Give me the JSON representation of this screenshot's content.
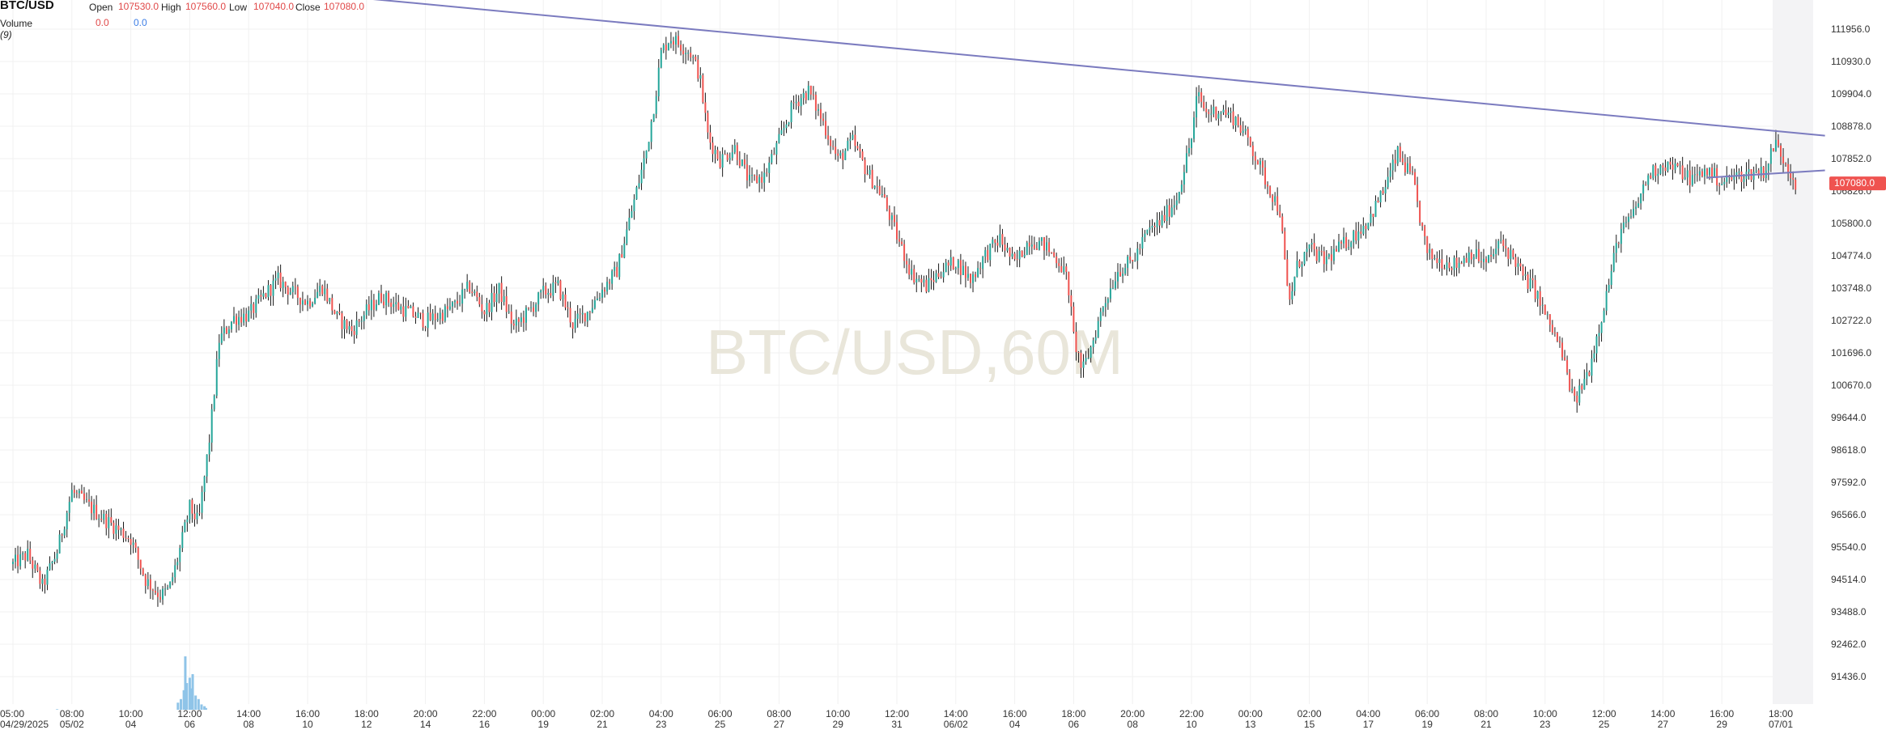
{
  "header": {
    "symbol": "BTC/USD",
    "open_label": "Open",
    "open_value": "107530.0",
    "high_label": "High",
    "high_value": "107560.0",
    "low_label": "Low",
    "low_value": "107040.0",
    "close_label": "Close",
    "close_value": "107080.0",
    "volume_label": "Volume",
    "volume_param": "(9)",
    "volume_value_1": "0.0",
    "volume_value_2": "0.0"
  },
  "chart_data": {
    "type": "candlestick",
    "title": "BTC/USD",
    "watermark": "BTC/USD,60M",
    "current_price": 107080.0,
    "current_price_label": "107080.0",
    "ylim": [
      90400,
      113000
    ],
    "y_ticks": [
      "111956.0",
      "110930.0",
      "109904.0",
      "108878.0",
      "107852.0",
      "106826.0",
      "105800.0",
      "104774.0",
      "103748.0",
      "102722.0",
      "101696.0",
      "100670.0",
      "99644.0",
      "98618.0",
      "97592.0",
      "96566.0",
      "95540.0",
      "94514.0",
      "93488.0",
      "92462.0",
      "91436.0"
    ],
    "x_ticks": [
      {
        "time": "05:00",
        "date": "04/29/2025"
      },
      {
        "time": "08:00",
        "date": "05/02"
      },
      {
        "time": "10:00",
        "date": "04"
      },
      {
        "time": "12:00",
        "date": "06"
      },
      {
        "time": "14:00",
        "date": "08"
      },
      {
        "time": "16:00",
        "date": "10"
      },
      {
        "time": "18:00",
        "date": "12"
      },
      {
        "time": "20:00",
        "date": "14"
      },
      {
        "time": "22:00",
        "date": "16"
      },
      {
        "time": "00:00",
        "date": "19"
      },
      {
        "time": "02:00",
        "date": "21"
      },
      {
        "time": "04:00",
        "date": "23"
      },
      {
        "time": "06:00",
        "date": "25"
      },
      {
        "time": "08:00",
        "date": "27"
      },
      {
        "time": "10:00",
        "date": "29"
      },
      {
        "time": "12:00",
        "date": "31"
      },
      {
        "time": "14:00",
        "date": "06/02"
      },
      {
        "time": "16:00",
        "date": "04"
      },
      {
        "time": "18:00",
        "date": "06"
      },
      {
        "time": "20:00",
        "date": "08"
      },
      {
        "time": "22:00",
        "date": "10"
      },
      {
        "time": "00:00",
        "date": "13"
      },
      {
        "time": "02:00",
        "date": "15"
      },
      {
        "time": "04:00",
        "date": "17"
      },
      {
        "time": "06:00",
        "date": "19"
      },
      {
        "time": "08:00",
        "date": "21"
      },
      {
        "time": "10:00",
        "date": "23"
      },
      {
        "time": "12:00",
        "date": "25"
      },
      {
        "time": "14:00",
        "date": "27"
      },
      {
        "time": "16:00",
        "date": "29"
      },
      {
        "time": "18:00",
        "date": "07/01"
      }
    ],
    "price_path": [
      [
        0,
        95000
      ],
      [
        0.5,
        95300
      ],
      [
        1,
        94300
      ],
      [
        1.5,
        95400
      ],
      [
        2,
        97300
      ],
      [
        3,
        96500
      ],
      [
        4,
        95800
      ],
      [
        4.5,
        94500
      ],
      [
        5,
        94000
      ],
      [
        5.3,
        94200
      ],
      [
        5.6,
        95200
      ],
      [
        6,
        96800
      ],
      [
        6.3,
        96300
      ],
      [
        6.7,
        99200
      ],
      [
        7,
        102100
      ],
      [
        7.5,
        102800
      ],
      [
        8,
        102900
      ],
      [
        8.6,
        103600
      ],
      [
        9,
        104000
      ],
      [
        9.5,
        103600
      ],
      [
        10,
        103300
      ],
      [
        10.5,
        103800
      ],
      [
        11,
        102800
      ],
      [
        11.5,
        102400
      ],
      [
        12,
        103000
      ],
      [
        12.5,
        103500
      ],
      [
        13,
        103200
      ],
      [
        13.4,
        103000
      ],
      [
        14,
        102700
      ],
      [
        14.5,
        102900
      ],
      [
        15,
        103200
      ],
      [
        15.5,
        103800
      ],
      [
        16,
        103000
      ],
      [
        16.5,
        103700
      ],
      [
        17,
        102500
      ],
      [
        17.5,
        103000
      ],
      [
        18,
        103600
      ],
      [
        18.5,
        103800
      ],
      [
        19,
        102600
      ],
      [
        19.5,
        103000
      ],
      [
        20,
        103700
      ],
      [
        20.5,
        104300
      ],
      [
        21,
        106200
      ],
      [
        21.5,
        108100
      ],
      [
        21.8,
        109800
      ],
      [
        22,
        111200
      ],
      [
        22.3,
        111700
      ],
      [
        22.6,
        111500
      ],
      [
        23,
        111200
      ],
      [
        23.3,
        110500
      ],
      [
        23.6,
        108500
      ],
      [
        24,
        107800
      ],
      [
        24.5,
        108200
      ],
      [
        25,
        107100
      ],
      [
        25.5,
        107300
      ],
      [
        26,
        108400
      ],
      [
        26.5,
        109600
      ],
      [
        27,
        110000
      ],
      [
        27.5,
        109000
      ],
      [
        28,
        107800
      ],
      [
        28.5,
        108400
      ],
      [
        29,
        107400
      ],
      [
        29.5,
        106700
      ],
      [
        30,
        105400
      ],
      [
        30.5,
        104200
      ],
      [
        31,
        103800
      ],
      [
        31.5,
        104300
      ],
      [
        32,
        104600
      ],
      [
        32.5,
        104000
      ],
      [
        33,
        104800
      ],
      [
        33.5,
        105300
      ],
      [
        34,
        104500
      ],
      [
        34.5,
        105300
      ],
      [
        35,
        105100
      ],
      [
        35.5,
        104600
      ],
      [
        35.8,
        104000
      ],
      [
        36,
        102200
      ],
      [
        36.3,
        101100
      ],
      [
        36.6,
        101900
      ],
      [
        37,
        103200
      ],
      [
        37.5,
        104300
      ],
      [
        38,
        104600
      ],
      [
        38.5,
        105500
      ],
      [
        39,
        105900
      ],
      [
        39.5,
        106600
      ],
      [
        40,
        108500
      ],
      [
        40.2,
        109900
      ],
      [
        40.5,
        109300
      ],
      [
        41,
        109400
      ],
      [
        41.5,
        109100
      ],
      [
        42,
        108300
      ],
      [
        42.5,
        107200
      ],
      [
        43,
        106200
      ],
      [
        43.3,
        103200
      ],
      [
        43.6,
        104500
      ],
      [
        44,
        105000
      ],
      [
        44.5,
        104600
      ],
      [
        45,
        105000
      ],
      [
        45.5,
        105400
      ],
      [
        46,
        105900
      ],
      [
        46.5,
        106800
      ],
      [
        47,
        108000
      ],
      [
        47.5,
        107200
      ],
      [
        48,
        104800
      ],
      [
        48.5,
        104600
      ],
      [
        49,
        104500
      ],
      [
        49.5,
        104900
      ],
      [
        50,
        104500
      ],
      [
        50.5,
        105200
      ],
      [
        51,
        104600
      ],
      [
        51.3,
        104000
      ],
      [
        51.6,
        103800
      ],
      [
        52,
        102900
      ],
      [
        52.5,
        101900
      ],
      [
        53,
        100100
      ],
      [
        53.5,
        101200
      ],
      [
        54,
        103200
      ],
      [
        54.5,
        105400
      ],
      [
        55,
        106100
      ],
      [
        55.5,
        107300
      ],
      [
        56,
        107700
      ],
      [
        56.5,
        107500
      ],
      [
        57,
        107200
      ],
      [
        57.5,
        107500
      ],
      [
        58,
        107100
      ],
      [
        58.5,
        107300
      ],
      [
        59,
        107400
      ],
      [
        59.5,
        107500
      ],
      [
        59.8,
        108400
      ],
      [
        60,
        108000
      ],
      [
        60.2,
        107700
      ],
      [
        60.5,
        107080
      ]
    ],
    "volume_spikes": [
      [
        1.5,
        3
      ],
      [
        5.6,
        40
      ],
      [
        5.7,
        60
      ],
      [
        5.8,
        110
      ],
      [
        5.85,
        300
      ],
      [
        5.9,
        150
      ],
      [
        6.0,
        180
      ],
      [
        6.05,
        120
      ],
      [
        6.1,
        200
      ],
      [
        6.2,
        80
      ],
      [
        6.3,
        60
      ],
      [
        6.4,
        30
      ],
      [
        6.5,
        20
      ],
      [
        6.55,
        10
      ]
    ],
    "trendlines": [
      {
        "from": [
          10,
          113100
        ],
        "to": [
          61.5,
          108580
        ]
      },
      {
        "from": [
          57.5,
          107250
        ],
        "to": [
          61.5,
          107480
        ]
      }
    ],
    "colors": {
      "up": "#26a69a",
      "down": "#ef5350",
      "wick": "#1a1a1a",
      "trendline": "#7b7bbf",
      "volume": "#8fc4e8",
      "price_tag": "#ef5350"
    }
  }
}
